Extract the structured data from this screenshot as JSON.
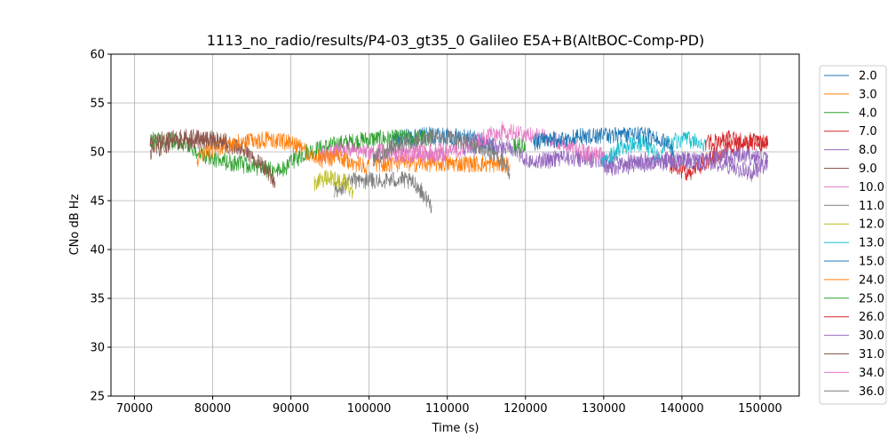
{
  "chart_data": {
    "type": "line",
    "title": "1113_no_radio/results/P4-03_gt35_0 Galileo E5A+B(AltBOC-Comp-PD)",
    "xlabel": "Time (s)",
    "ylabel": "CNo dB Hz",
    "xlim": [
      67000,
      155000
    ],
    "ylim": [
      25,
      60
    ],
    "x_ticks": [
      70000,
      80000,
      90000,
      100000,
      110000,
      120000,
      130000,
      140000,
      150000
    ],
    "y_ticks": [
      25,
      30,
      35,
      40,
      45,
      50,
      55,
      60
    ],
    "grid": true,
    "legend_position": "outside-right",
    "series": [
      {
        "name": "2.0",
        "color": "#1f77b4",
        "points": [
          [
            103000,
            51.3
          ],
          [
            108000,
            51.7
          ],
          [
            113000,
            51.4
          ],
          [
            116000,
            50.6
          ]
        ]
      },
      {
        "name": "3.0",
        "color": "#ff7f0e",
        "points": [
          [
            100500,
            48.8
          ],
          [
            112000,
            48.8
          ],
          [
            118000,
            48.7
          ]
        ]
      },
      {
        "name": "4.0",
        "color": "#2ca02c",
        "points": [
          [
            72000,
            51.2
          ],
          [
            76000,
            51.0
          ],
          [
            79500,
            49.3
          ],
          [
            88500,
            48.0
          ],
          [
            92000,
            50.0
          ],
          [
            96000,
            50.8
          ],
          [
            100000,
            51.3
          ],
          [
            104000,
            51.4
          ],
          [
            108000,
            51.4
          ]
        ]
      },
      {
        "name": "7.0",
        "color": "#d62728",
        "points": [
          [
            138500,
            48.7
          ],
          [
            141000,
            47.8
          ],
          [
            144000,
            49.5
          ],
          [
            147000,
            50.8
          ],
          [
            151000,
            51.0
          ]
        ]
      },
      {
        "name": "8.0",
        "color": "#9467bd",
        "points": [
          [
            112000,
            50.0
          ],
          [
            115000,
            50.8
          ],
          [
            118000,
            50.3
          ],
          [
            121000,
            49.0
          ],
          [
            125000,
            49.4
          ],
          [
            130000,
            49.2
          ],
          [
            134000,
            49.0
          ],
          [
            140000,
            49.2
          ],
          [
            146000,
            48.6
          ],
          [
            149000,
            47.8
          ],
          [
            151000,
            49.0
          ]
        ]
      },
      {
        "name": "9.0",
        "color": "#8c564b",
        "points": [
          [
            72000,
            50.0
          ],
          [
            75000,
            51.0
          ],
          [
            78000,
            51.2
          ],
          [
            81000,
            51.0
          ],
          [
            84000,
            50.2
          ],
          [
            86500,
            48.5
          ],
          [
            88000,
            47.0
          ]
        ]
      },
      {
        "name": "10.0",
        "color": "#e377c2",
        "points": [
          [
            93500,
            49.6
          ],
          [
            97000,
            50.2
          ],
          [
            100500,
            50.0
          ],
          [
            103000,
            49.8
          ],
          [
            106000,
            49.6
          ],
          [
            109000,
            49.7
          ],
          [
            111000,
            50.2
          ],
          [
            114000,
            51.2
          ],
          [
            117000,
            52.2
          ],
          [
            120000,
            51.8
          ],
          [
            124000,
            51.2
          ],
          [
            127000,
            50.0
          ],
          [
            130000,
            49.5
          ]
        ]
      },
      {
        "name": "11.0",
        "color": "#7f7f7f",
        "points": [
          [
            95500,
            46.0
          ],
          [
            98000,
            47.1
          ],
          [
            101000,
            47.0
          ],
          [
            104000,
            47.2
          ],
          [
            106000,
            46.7
          ],
          [
            108000,
            44.5
          ]
        ]
      },
      {
        "name": "12.0",
        "color": "#bcbd22",
        "points": [
          [
            93000,
            46.8
          ],
          [
            95000,
            47.4
          ],
          [
            97000,
            46.8
          ],
          [
            98000,
            45.8
          ]
        ]
      },
      {
        "name": "13.0",
        "color": "#17becf",
        "points": [
          [
            129800,
            48.8
          ],
          [
            132000,
            50.3
          ],
          [
            135000,
            51.0
          ],
          [
            137000,
            49.5
          ],
          [
            138000,
            51.0
          ],
          [
            141000,
            51.2
          ],
          [
            143000,
            50.8
          ]
        ]
      },
      {
        "name": "15.0",
        "color": "#1f77b4",
        "points": [
          [
            121000,
            51.0
          ],
          [
            126000,
            51.5
          ],
          [
            130000,
            51.7
          ],
          [
            134000,
            51.8
          ],
          [
            137000,
            51.4
          ],
          [
            139000,
            50.2
          ]
        ]
      },
      {
        "name": "24.0",
        "color": "#ff7f0e",
        "points": [
          [
            78000,
            49.3
          ],
          [
            80000,
            50.3
          ],
          [
            83000,
            51.0
          ],
          [
            87000,
            51.2
          ],
          [
            90000,
            51.0
          ],
          [
            92000,
            50.0
          ],
          [
            94000,
            49.2
          ],
          [
            96000,
            49.5
          ],
          [
            98000,
            48.8
          ],
          [
            100000,
            48.5
          ]
        ]
      },
      {
        "name": "25.0",
        "color": "#2ca02c",
        "points": [
          [
            118500,
            50.5
          ],
          [
            120000,
            50.8
          ]
        ]
      },
      {
        "name": "26.0",
        "color": "#d62728",
        "points": [
          [
            143000,
            50.8
          ],
          [
            146000,
            51.3
          ],
          [
            149000,
            51.2
          ],
          [
            151000,
            50.6
          ]
        ]
      },
      {
        "name": "30.0",
        "color": "#9467bd",
        "points": [
          [
            130000,
            48.3
          ],
          [
            136000,
            48.8
          ],
          [
            142000,
            49.2
          ],
          [
            146000,
            49.6
          ],
          [
            151000,
            49.4
          ]
        ]
      },
      {
        "name": "31.0",
        "color": "#8c564b",
        "points": [
          [
            72000,
            51.0
          ],
          [
            76000,
            51.5
          ],
          [
            80000,
            51.3
          ],
          [
            82000,
            51.0
          ]
        ]
      },
      {
        "name": "34.0",
        "color": "#e377c2",
        "points": [
          [
            104000,
            49.8
          ],
          [
            107000,
            50.0
          ],
          [
            110000,
            50.0
          ]
        ]
      },
      {
        "name": "36.0",
        "color": "#7f7f7f",
        "points": [
          [
            100500,
            49.2
          ],
          [
            103000,
            50.5
          ],
          [
            106000,
            51.3
          ],
          [
            110000,
            51.5
          ],
          [
            114000,
            50.6
          ],
          [
            117000,
            49.2
          ],
          [
            118000,
            47.8
          ]
        ]
      }
    ]
  }
}
